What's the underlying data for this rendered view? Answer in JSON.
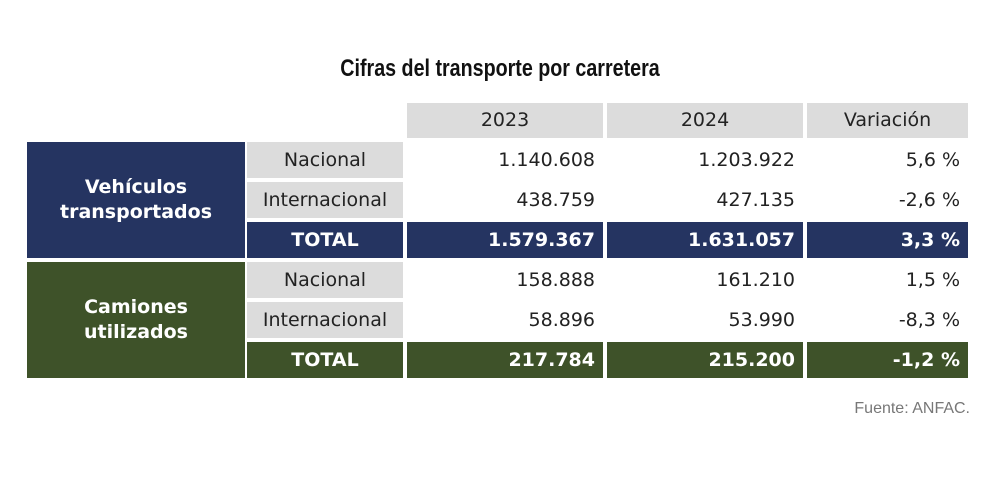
{
  "title": "Cifras del transporte por carretera",
  "header": [
    "2023",
    "2024",
    "Variación"
  ],
  "groups": [
    {
      "label": "Vehículos transportados",
      "color": "#253461",
      "rows": [
        {
          "label": "Nacional",
          "values": [
            "1.140.608",
            "1.203.922",
            "5,6 %"
          ]
        },
        {
          "label": "Internacional",
          "values": [
            "438.759",
            "427.135",
            "-2,6 %"
          ]
        },
        {
          "label": "TOTAL",
          "values": [
            "1.579.367",
            "1.631.057",
            "3,3 %"
          ]
        }
      ]
    },
    {
      "label": "Camiones utilizados",
      "color": "#3e5229",
      "rows": [
        {
          "label": "Nacional",
          "values": [
            "158.888",
            "161.210",
            "1,5 %"
          ]
        },
        {
          "label": "Internacional",
          "values": [
            "58.896",
            "53.990",
            "-8,3 %"
          ]
        },
        {
          "label": "TOTAL",
          "values": [
            "217.784",
            "215.200",
            "-1,2 %"
          ]
        }
      ]
    }
  ],
  "source": "Fuente: ANFAC."
}
